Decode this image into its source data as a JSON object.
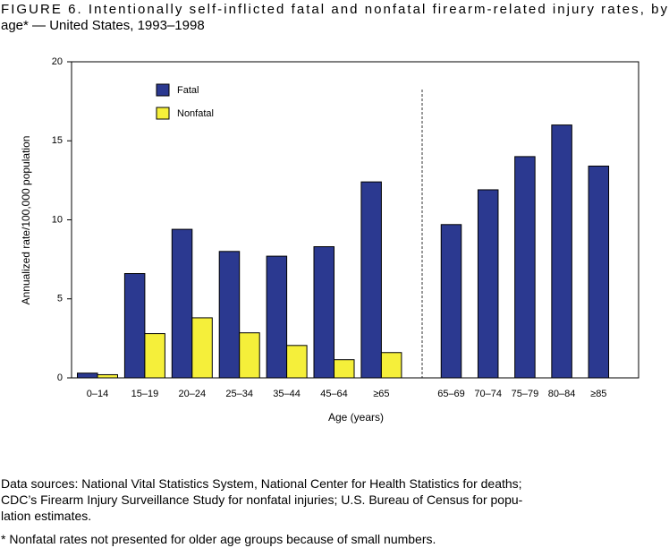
{
  "chart_data": {
    "type": "bar",
    "title": [
      "FIGURE 6. Intentionally self-inflicted fatal and nonfatal firearm-related injury rates, by",
      "age* — United States, 1993–1998"
    ],
    "y_label": "Annualized rate/100,000 population",
    "x_label": "Age (years)",
    "categories": [
      "0–14",
      "15–19",
      "20–24",
      "25–34",
      "35–44",
      "45–64",
      "≥65",
      null,
      "65–69",
      "70–74",
      "75–79",
      "80–84",
      "≥85"
    ],
    "series": [
      {
        "name": "Fatal",
        "color": "#2b3990",
        "values": [
          0.3,
          6.6,
          9.4,
          8.0,
          7.7,
          8.3,
          12.4,
          null,
          9.7,
          11.9,
          14.0,
          16.0,
          13.4
        ]
      },
      {
        "name": "Nonfatal",
        "color": "#f5ef3a",
        "values": [
          0.2,
          2.8,
          3.8,
          2.85,
          2.05,
          1.15,
          1.6,
          null,
          null,
          null,
          null,
          null,
          null
        ]
      }
    ],
    "ylim": [
      0,
      20
    ],
    "yticks": [
      0,
      5,
      10,
      15,
      20
    ],
    "legend": "upper-left",
    "notes": [
      "Data sources: National Vital Statistics System, National Center for Health Statistics for deaths;",
      "CDC’s Firearm Injury Surveillance Study for nonfatal injuries; U.S. Bureau of Census for popu-",
      "lation estimates."
    ],
    "footnote": "* Nonfatal rates not presented for older age groups because of small numbers."
  }
}
